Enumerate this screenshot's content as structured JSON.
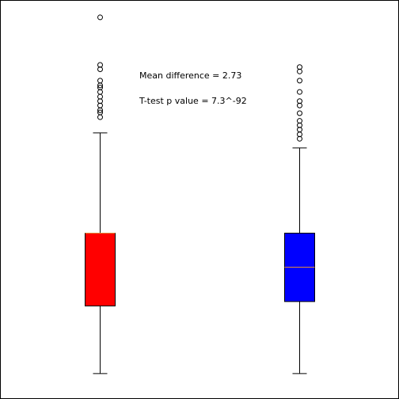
{
  "chart_data": {
    "type": "box",
    "annotations": [
      "Mean difference = 2.73",
      "T-test p value = 7.3^-92"
    ],
    "ylim": [
      0,
      100
    ],
    "series": [
      {
        "color": "#ff0000",
        "whisker_low": 2.4,
        "q1": 20.9,
        "median": 40.8,
        "q3": 40.8,
        "whisker_high": 68.2,
        "outliers": [
          72.5,
          73.8,
          74.4,
          75.7,
          76.9,
          78.1,
          79.4,
          80.6,
          81.2,
          82.5,
          85.6,
          86.8,
          99.8
        ]
      },
      {
        "color": "#0000ff",
        "whisker_low": 2.4,
        "q1": 22.1,
        "median": 31.5,
        "q3": 40.8,
        "whisker_high": 64.1,
        "outliers": [
          66.6,
          67.8,
          69.1,
          70.3,
          71.5,
          73.6,
          75.7,
          76.9,
          79.4,
          82.5,
          85.0,
          86.2
        ]
      }
    ]
  }
}
